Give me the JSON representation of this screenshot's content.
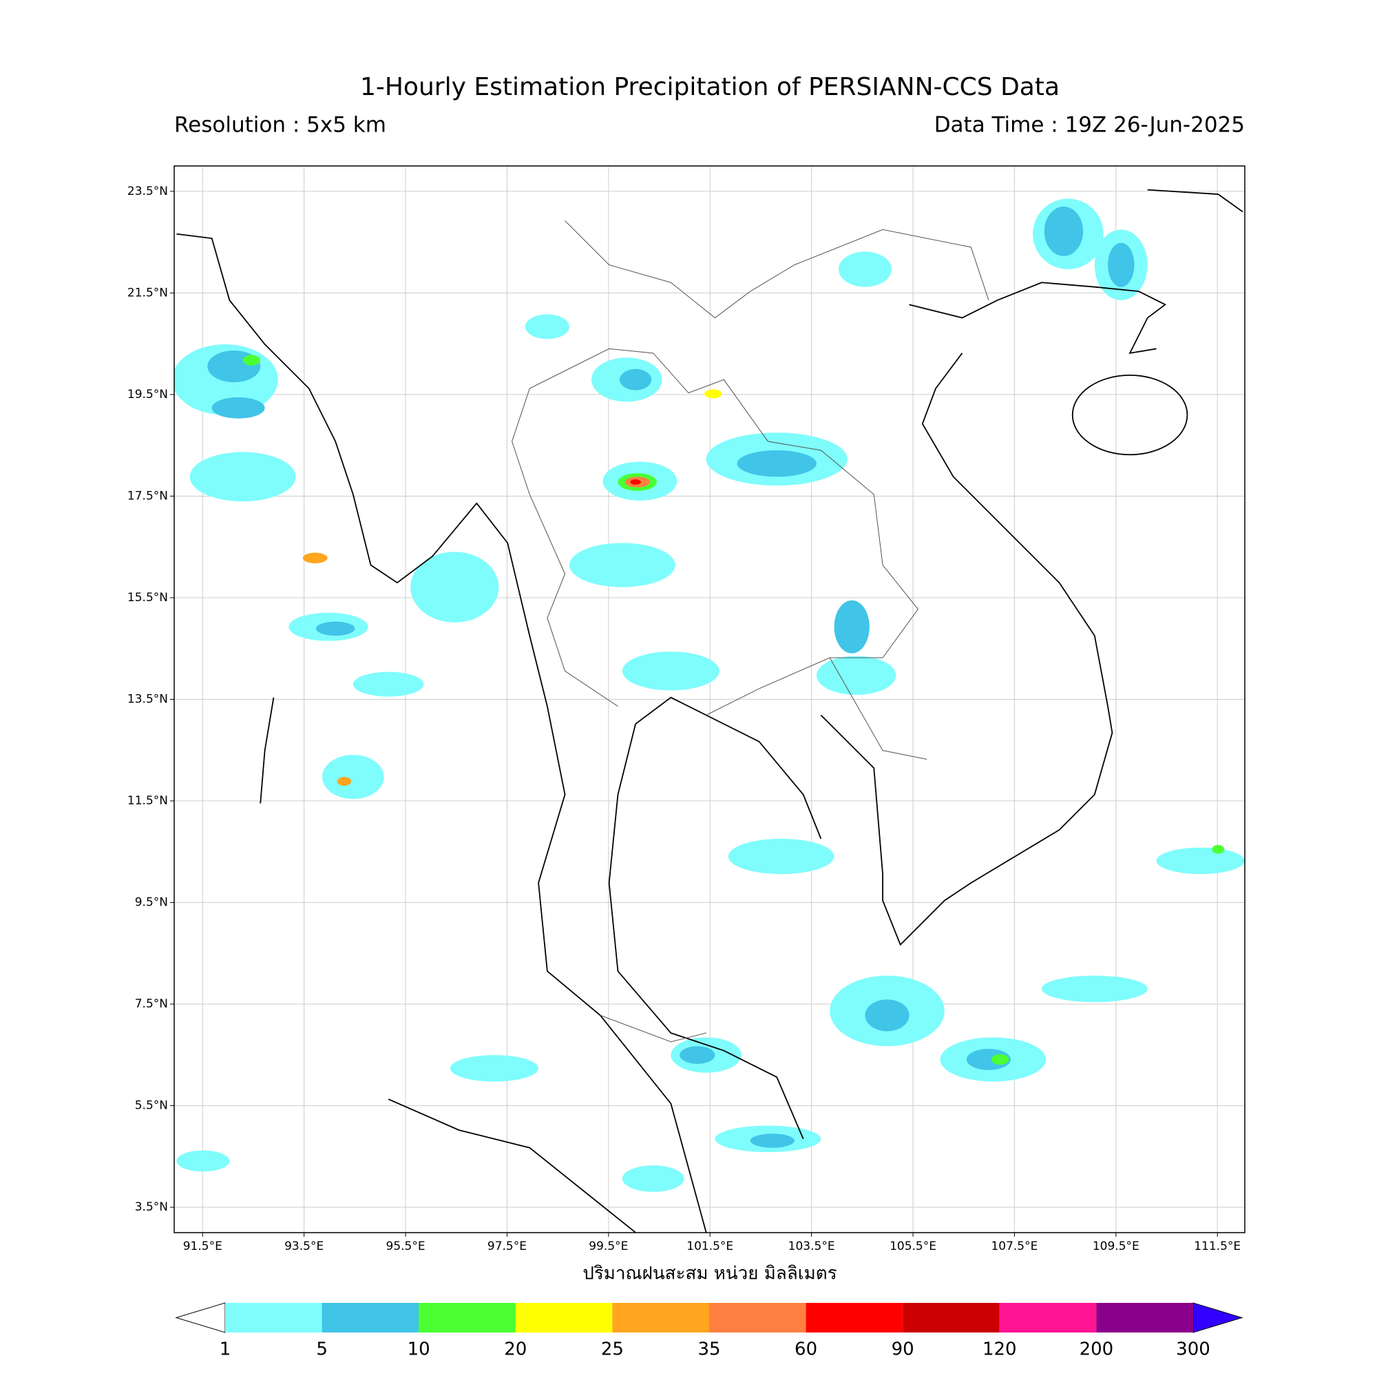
{
  "header": {
    "title": "1-Hourly Estimation Precipitation of PERSIANN-CCS Data",
    "resolution": "Resolution : 5x5 km",
    "data_time": "Data Time : 19Z 26-Jun-2025"
  },
  "map": {
    "lon_lim": [
      90.94,
      112.04
    ],
    "lat_lim": [
      3.0,
      24.0
    ],
    "lat_ticks": [
      {
        "value": 23.5,
        "label": "23.5°N"
      },
      {
        "value": 21.5,
        "label": "21.5°N"
      },
      {
        "value": 19.5,
        "label": "19.5°N"
      },
      {
        "value": 17.5,
        "label": "17.5°N"
      },
      {
        "value": 15.5,
        "label": "15.5°N"
      },
      {
        "value": 13.5,
        "label": "13.5°N"
      },
      {
        "value": 11.5,
        "label": "11.5°N"
      },
      {
        "value": 9.5,
        "label": "9.5°N"
      },
      {
        "value": 7.5,
        "label": "7.5°N"
      },
      {
        "value": 5.5,
        "label": "5.5°N"
      },
      {
        "value": 3.5,
        "label": "3.5°N"
      }
    ],
    "lon_ticks": [
      {
        "value": 91.5,
        "label": "91.5°E"
      },
      {
        "value": 93.5,
        "label": "93.5°E"
      },
      {
        "value": 95.5,
        "label": "95.5°E"
      },
      {
        "value": 97.5,
        "label": "97.5°E"
      },
      {
        "value": 99.5,
        "label": "99.5°E"
      },
      {
        "value": 101.5,
        "label": "101.5°E"
      },
      {
        "value": 103.5,
        "label": "103.5°E"
      },
      {
        "value": 105.5,
        "label": "105.5°E"
      },
      {
        "value": 107.5,
        "label": "107.5°E"
      },
      {
        "value": 109.5,
        "label": "109.5°E"
      },
      {
        "value": 111.5,
        "label": "111.5°E"
      }
    ],
    "grid": true,
    "axis_label": "ปริมาณฝนสะสม หน่วย มิลลิเมตร"
  },
  "colorbar": {
    "levels": [
      1,
      5,
      10,
      20,
      25,
      35,
      60,
      90,
      120,
      200,
      300
    ],
    "colors": [
      "#7ffcfc",
      "#40c4e8",
      "#4bff33",
      "#ffff00",
      "#ffa520",
      "#ff8040",
      "#ff0000",
      "#cc0000",
      "#ff1493",
      "#8b008b"
    ],
    "under_color": "#ffffff",
    "over_color": "#3300ff"
  }
}
